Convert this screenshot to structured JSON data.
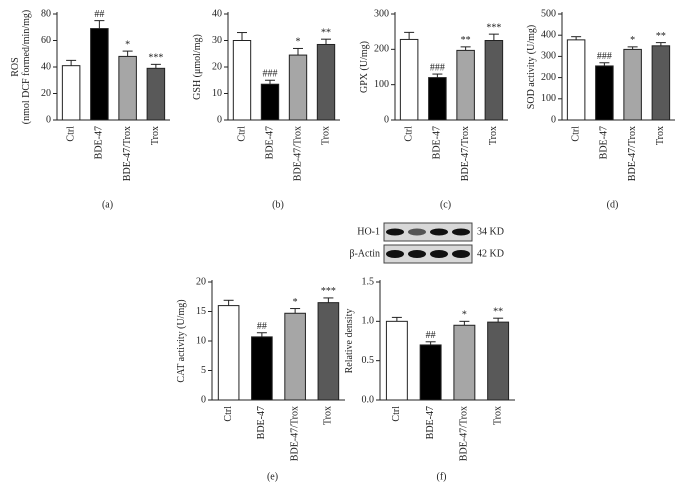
{
  "chart_data": [
    {
      "type": "bar",
      "panel_label": "(a)",
      "ylabel": "ROS\n(nmol DCF formed/min/mg)",
      "categories": [
        "Ctrl",
        "BDE-47",
        "BDE-47/Trox",
        "Trox"
      ],
      "values": [
        41,
        69,
        48,
        39
      ],
      "errors": [
        4,
        6,
        4,
        3
      ],
      "annotations": [
        null,
        "##",
        "*",
        "***"
      ],
      "colors": [
        "#ffffff",
        "#000000",
        "#a6a6a6",
        "#595959"
      ],
      "ylim": [
        0,
        80
      ],
      "yticks": [
        0,
        20,
        40,
        60,
        80
      ]
    },
    {
      "type": "bar",
      "panel_label": "(b)",
      "ylabel": "GSH (μmol/mg)",
      "categories": [
        "Ctrl",
        "BDE-47",
        "BDE-47/Trox",
        "Trox"
      ],
      "values": [
        30,
        13.5,
        24.5,
        28.5
      ],
      "errors": [
        3,
        1.5,
        2.5,
        2
      ],
      "annotations": [
        null,
        "###",
        "*",
        "**"
      ],
      "colors": [
        "#ffffff",
        "#000000",
        "#a6a6a6",
        "#595959"
      ],
      "ylim": [
        0,
        40
      ],
      "yticks": [
        0,
        10,
        20,
        30,
        40
      ]
    },
    {
      "type": "bar",
      "panel_label": "(c)",
      "ylabel": "GPX (U/mg)",
      "categories": [
        "Ctrl",
        "BDE-47",
        "BDE-47/Trox",
        "Trox"
      ],
      "values": [
        228,
        120,
        197,
        225
      ],
      "errors": [
        20,
        10,
        10,
        18
      ],
      "annotations": [
        null,
        "###",
        "**",
        "***"
      ],
      "colors": [
        "#ffffff",
        "#000000",
        "#a6a6a6",
        "#595959"
      ],
      "ylim": [
        0,
        300
      ],
      "yticks": [
        0,
        100,
        200,
        300
      ]
    },
    {
      "type": "bar",
      "panel_label": "(d)",
      "ylabel": "SOD activity (U/mg)",
      "categories": [
        "Ctrl",
        "BDE-47",
        "BDE-47/Trox",
        "Trox"
      ],
      "values": [
        378,
        255,
        333,
        350
      ],
      "errors": [
        15,
        15,
        12,
        15
      ],
      "annotations": [
        null,
        "###",
        "*",
        "**"
      ],
      "colors": [
        "#ffffff",
        "#000000",
        "#a6a6a6",
        "#595959"
      ],
      "ylim": [
        0,
        500
      ],
      "yticks": [
        0,
        100,
        200,
        300,
        400,
        500
      ]
    },
    {
      "type": "bar",
      "panel_label": "(e)",
      "ylabel": "CAT activity (U/mg)",
      "categories": [
        "Ctrl",
        "BDE-47",
        "BDE-47/Trox",
        "Trox"
      ],
      "values": [
        16,
        10.7,
        14.7,
        16.5
      ],
      "errors": [
        0.9,
        0.7,
        0.8,
        0.8
      ],
      "annotations": [
        null,
        "##",
        "*",
        "***"
      ],
      "colors": [
        "#ffffff",
        "#000000",
        "#a6a6a6",
        "#595959"
      ],
      "ylim": [
        0,
        20
      ],
      "yticks": [
        0,
        5,
        10,
        15,
        20
      ]
    },
    {
      "type": "bar",
      "panel_label": "(f)",
      "ylabel": "Relative density",
      "categories": [
        "Ctrl",
        "BDE-47",
        "BDE-47/Trox",
        "Trox"
      ],
      "values": [
        1.0,
        0.7,
        0.95,
        0.99
      ],
      "errors": [
        0.05,
        0.04,
        0.05,
        0.05
      ],
      "annotations": [
        null,
        "##",
        "*",
        "**"
      ],
      "colors": [
        "#ffffff",
        "#000000",
        "#a6a6a6",
        "#595959"
      ],
      "ylim": [
        0,
        1.5
      ],
      "yticks": [
        {
          "value": 0,
          "label": "0.0"
        },
        0.5,
        {
          "value": 1,
          "label": "1.0"
        },
        1.5
      ],
      "blot": [
        {
          "label": "HO-1",
          "size": "34 KD"
        },
        {
          "label": "β-Actin",
          "size": "42 KD"
        }
      ]
    }
  ]
}
